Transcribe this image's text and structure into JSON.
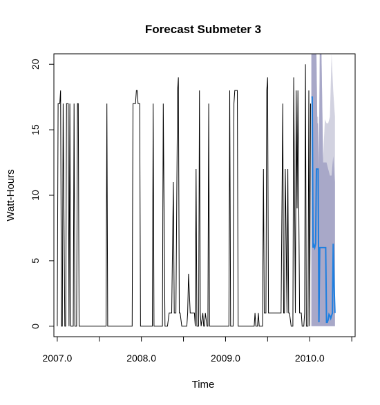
{
  "chart_data": {
    "type": "line",
    "title": "Forecast Submeter 3",
    "xlabel": "Time",
    "ylabel": "Watt-Hours",
    "xlim": [
      2006.96,
      2010.54
    ],
    "ylim": [
      -0.8,
      20.8
    ],
    "x_ticks": [
      2007.0,
      2007.5,
      2008.0,
      2008.5,
      2009.0,
      2009.5,
      2010.0,
      2010.5
    ],
    "x_tick_labels": [
      {
        "value": 2007.0,
        "label": "2007.0"
      },
      {
        "value": 2008.0,
        "label": "2008.0"
      },
      {
        "value": 2009.0,
        "label": "2009.0"
      },
      {
        "value": 2010.0,
        "label": "2010.0"
      }
    ],
    "y_ticks": [
      {
        "value": 0,
        "label": "0"
      },
      {
        "value": 5,
        "label": "5"
      },
      {
        "value": 10,
        "label": "10"
      },
      {
        "value": 15,
        "label": "15"
      },
      {
        "value": 20,
        "label": "20"
      }
    ],
    "grid": false,
    "legend": "none",
    "colors": {
      "observed": "#000000",
      "forecast": "#1e7fe0",
      "band95": "#d2d2e0",
      "band80": "#a8a8c8"
    },
    "observed": [
      [
        2007.0,
        0
      ],
      [
        2007.01,
        17
      ],
      [
        2007.03,
        17
      ],
      [
        2007.04,
        18
      ],
      [
        2007.05,
        0
      ],
      [
        2007.06,
        0
      ],
      [
        2007.07,
        17
      ],
      [
        2007.09,
        0
      ],
      [
        2007.1,
        0
      ],
      [
        2007.11,
        17
      ],
      [
        2007.13,
        17
      ],
      [
        2007.14,
        0
      ],
      [
        2007.15,
        17
      ],
      [
        2007.16,
        0
      ],
      [
        2007.18,
        0
      ],
      [
        2007.19,
        0
      ],
      [
        2007.2,
        17
      ],
      [
        2007.21,
        0
      ],
      [
        2007.23,
        0
      ],
      [
        2007.24,
        17
      ],
      [
        2007.25,
        17
      ],
      [
        2007.26,
        0
      ],
      [
        2007.28,
        0
      ],
      [
        2007.29,
        0
      ],
      [
        2007.3,
        0
      ],
      [
        2007.31,
        0
      ],
      [
        2007.33,
        0
      ],
      [
        2007.34,
        0
      ],
      [
        2007.35,
        0
      ],
      [
        2007.36,
        0
      ],
      [
        2007.38,
        0
      ],
      [
        2007.39,
        0
      ],
      [
        2007.4,
        0
      ],
      [
        2007.41,
        0
      ],
      [
        2007.43,
        0
      ],
      [
        2007.44,
        0
      ],
      [
        2007.45,
        0
      ],
      [
        2007.46,
        0
      ],
      [
        2007.48,
        0
      ],
      [
        2007.49,
        0
      ],
      [
        2007.5,
        0
      ],
      [
        2007.51,
        0
      ],
      [
        2007.53,
        0
      ],
      [
        2007.54,
        0
      ],
      [
        2007.55,
        0
      ],
      [
        2007.56,
        0
      ],
      [
        2007.58,
        0
      ],
      [
        2007.59,
        17
      ],
      [
        2007.6,
        0
      ],
      [
        2007.61,
        0
      ],
      [
        2007.63,
        0
      ],
      [
        2007.64,
        0
      ],
      [
        2007.65,
        0
      ],
      [
        2007.66,
        0
      ],
      [
        2007.68,
        0
      ],
      [
        2007.69,
        0
      ],
      [
        2007.7,
        0
      ],
      [
        2007.71,
        0
      ],
      [
        2007.73,
        0
      ],
      [
        2007.74,
        0
      ],
      [
        2007.75,
        0
      ],
      [
        2007.76,
        0
      ],
      [
        2007.78,
        0
      ],
      [
        2007.79,
        0
      ],
      [
        2007.8,
        0
      ],
      [
        2007.81,
        0
      ],
      [
        2007.83,
        0
      ],
      [
        2007.84,
        0
      ],
      [
        2007.85,
        0
      ],
      [
        2007.86,
        0
      ],
      [
        2007.88,
        0
      ],
      [
        2007.89,
        0
      ],
      [
        2007.9,
        17
      ],
      [
        2007.91,
        17
      ],
      [
        2007.93,
        17
      ],
      [
        2007.94,
        18
      ],
      [
        2007.95,
        18
      ],
      [
        2007.96,
        17
      ],
      [
        2007.98,
        17
      ],
      [
        2007.99,
        0
      ],
      [
        2008.0,
        0
      ],
      [
        2008.01,
        0
      ],
      [
        2008.03,
        0
      ],
      [
        2008.04,
        0
      ],
      [
        2008.05,
        0
      ],
      [
        2008.06,
        0
      ],
      [
        2008.08,
        0
      ],
      [
        2008.09,
        0
      ],
      [
        2008.1,
        0
      ],
      [
        2008.11,
        0
      ],
      [
        2008.13,
        0
      ],
      [
        2008.14,
        17
      ],
      [
        2008.15,
        0
      ],
      [
        2008.16,
        0
      ],
      [
        2008.18,
        0
      ],
      [
        2008.19,
        0
      ],
      [
        2008.2,
        0
      ],
      [
        2008.21,
        0
      ],
      [
        2008.23,
        0
      ],
      [
        2008.24,
        0
      ],
      [
        2008.25,
        0
      ],
      [
        2008.26,
        17
      ],
      [
        2008.28,
        0
      ],
      [
        2008.29,
        0
      ],
      [
        2008.3,
        0
      ],
      [
        2008.31,
        0
      ],
      [
        2008.33,
        1
      ],
      [
        2008.34,
        1
      ],
      [
        2008.35,
        1
      ],
      [
        2008.36,
        1
      ],
      [
        2008.38,
        11
      ],
      [
        2008.39,
        1
      ],
      [
        2008.4,
        1
      ],
      [
        2008.41,
        1
      ],
      [
        2008.43,
        18
      ],
      [
        2008.44,
        19
      ],
      [
        2008.45,
        1
      ],
      [
        2008.46,
        1
      ],
      [
        2008.48,
        0
      ],
      [
        2008.49,
        0
      ],
      [
        2008.5,
        0
      ],
      [
        2008.51,
        0
      ],
      [
        2008.53,
        0
      ],
      [
        2008.54,
        0
      ],
      [
        2008.55,
        1
      ],
      [
        2008.56,
        4
      ],
      [
        2008.58,
        1
      ],
      [
        2008.59,
        1
      ],
      [
        2008.6,
        1
      ],
      [
        2008.61,
        1
      ],
      [
        2008.63,
        1
      ],
      [
        2008.64,
        0
      ],
      [
        2008.65,
        12
      ],
      [
        2008.66,
        0
      ],
      [
        2008.68,
        0
      ],
      [
        2008.69,
        18
      ],
      [
        2008.7,
        1
      ],
      [
        2008.71,
        0
      ],
      [
        2008.73,
        1
      ],
      [
        2008.74,
        0
      ],
      [
        2008.75,
        0
      ],
      [
        2008.76,
        1
      ],
      [
        2008.78,
        0
      ],
      [
        2008.79,
        0
      ],
      [
        2008.8,
        17
      ],
      [
        2008.81,
        0
      ],
      [
        2008.83,
        0
      ],
      [
        2008.84,
        0
      ],
      [
        2008.85,
        0
      ],
      [
        2008.86,
        0
      ],
      [
        2008.88,
        0
      ],
      [
        2008.89,
        0
      ],
      [
        2008.9,
        0
      ],
      [
        2008.91,
        0
      ],
      [
        2008.93,
        0
      ],
      [
        2008.94,
        0
      ],
      [
        2008.95,
        0
      ],
      [
        2008.96,
        0
      ],
      [
        2008.98,
        0
      ],
      [
        2008.99,
        0
      ],
      [
        2009.0,
        0
      ],
      [
        2009.01,
        0
      ],
      [
        2009.03,
        0
      ],
      [
        2009.04,
        0
      ],
      [
        2009.05,
        18
      ],
      [
        2009.06,
        0
      ],
      [
        2009.08,
        0
      ],
      [
        2009.09,
        0
      ],
      [
        2009.1,
        17
      ],
      [
        2009.11,
        18
      ],
      [
        2009.13,
        18
      ],
      [
        2009.14,
        18
      ],
      [
        2009.15,
        0
      ],
      [
        2009.16,
        0
      ],
      [
        2009.18,
        0
      ],
      [
        2009.19,
        0
      ],
      [
        2009.2,
        0
      ],
      [
        2009.21,
        0
      ],
      [
        2009.23,
        0
      ],
      [
        2009.24,
        0
      ],
      [
        2009.25,
        0
      ],
      [
        2009.26,
        0
      ],
      [
        2009.28,
        0
      ],
      [
        2009.29,
        0
      ],
      [
        2009.3,
        0
      ],
      [
        2009.31,
        0
      ],
      [
        2009.33,
        0
      ],
      [
        2009.34,
        0
      ],
      [
        2009.35,
        1
      ],
      [
        2009.36,
        0
      ],
      [
        2009.38,
        0
      ],
      [
        2009.39,
        1
      ],
      [
        2009.4,
        0
      ],
      [
        2009.41,
        0
      ],
      [
        2009.43,
        0
      ],
      [
        2009.44,
        0
      ],
      [
        2009.45,
        12
      ],
      [
        2009.46,
        1
      ],
      [
        2009.48,
        1
      ],
      [
        2009.49,
        18
      ],
      [
        2009.5,
        19
      ],
      [
        2009.51,
        1
      ],
      [
        2009.53,
        1
      ],
      [
        2009.54,
        1
      ],
      [
        2009.55,
        1
      ],
      [
        2009.56,
        1
      ],
      [
        2009.58,
        1
      ],
      [
        2009.59,
        1
      ],
      [
        2009.6,
        1
      ],
      [
        2009.61,
        1
      ],
      [
        2009.63,
        1
      ],
      [
        2009.64,
        1
      ],
      [
        2009.65,
        1
      ],
      [
        2009.66,
        1
      ],
      [
        2009.68,
        17
      ],
      [
        2009.69,
        1
      ],
      [
        2009.7,
        1
      ],
      [
        2009.71,
        12
      ],
      [
        2009.73,
        1
      ],
      [
        2009.74,
        12
      ],
      [
        2009.75,
        1
      ],
      [
        2009.76,
        1
      ],
      [
        2009.78,
        0
      ],
      [
        2009.79,
        0
      ],
      [
        2009.8,
        0
      ],
      [
        2009.81,
        19
      ],
      [
        2009.83,
        1
      ],
      [
        2009.84,
        18
      ],
      [
        2009.85,
        9
      ],
      [
        2009.86,
        18
      ],
      [
        2009.88,
        1
      ],
      [
        2009.89,
        1
      ],
      [
        2009.9,
        1
      ],
      [
        2009.91,
        0
      ],
      [
        2009.93,
        0
      ],
      [
        2009.94,
        1
      ],
      [
        2009.95,
        20
      ],
      [
        2009.96,
        0
      ],
      [
        2009.98,
        0
      ],
      [
        2009.99,
        18
      ],
      [
        2010.0,
        0
      ],
      [
        2010.01,
        17
      ]
    ],
    "forecast": [
      [
        2010.02,
        17.5
      ],
      [
        2010.03,
        17.5
      ],
      [
        2010.04,
        6
      ],
      [
        2010.05,
        6.2
      ],
      [
        2010.06,
        6
      ],
      [
        2010.07,
        6.3
      ],
      [
        2010.08,
        12
      ],
      [
        2010.09,
        12
      ],
      [
        2010.1,
        12
      ],
      [
        2010.11,
        0.3
      ],
      [
        2010.12,
        6
      ],
      [
        2010.13,
        6
      ],
      [
        2010.14,
        6
      ],
      [
        2010.15,
        6
      ],
      [
        2010.16,
        6
      ],
      [
        2010.17,
        6
      ],
      [
        2010.18,
        6
      ],
      [
        2010.19,
        6
      ],
      [
        2010.2,
        0.3
      ],
      [
        2010.21,
        0.3
      ],
      [
        2010.22,
        0.5
      ],
      [
        2010.23,
        0.9
      ],
      [
        2010.24,
        0.8
      ],
      [
        2010.25,
        0.6
      ],
      [
        2010.26,
        0.8
      ],
      [
        2010.27,
        1.0
      ],
      [
        2010.28,
        6.3
      ],
      [
        2010.29,
        3.0
      ],
      [
        2010.3,
        1.0
      ]
    ],
    "band80": [
      [
        2010.02,
        0,
        20.8
      ],
      [
        2010.04,
        0,
        20.8
      ],
      [
        2010.06,
        0,
        20.8
      ],
      [
        2010.08,
        0,
        20.8
      ],
      [
        2010.09,
        0,
        15.5
      ],
      [
        2010.1,
        0,
        15.5
      ],
      [
        2010.11,
        0,
        12.0
      ],
      [
        2010.12,
        0,
        20.8
      ],
      [
        2010.14,
        0,
        20.8
      ],
      [
        2010.16,
        0,
        12.5
      ],
      [
        2010.18,
        0,
        12.5
      ],
      [
        2010.2,
        0,
        12.5
      ],
      [
        2010.22,
        0,
        12.0
      ],
      [
        2010.24,
        0,
        11.5
      ],
      [
        2010.26,
        0,
        11.5
      ],
      [
        2010.28,
        0,
        13.0
      ],
      [
        2010.3,
        0,
        11.0
      ]
    ],
    "band95": [
      [
        2010.02,
        0,
        20.8
      ],
      [
        2010.04,
        0,
        20.8
      ],
      [
        2010.06,
        0,
        20.8
      ],
      [
        2010.08,
        0,
        20.8
      ],
      [
        2010.09,
        0,
        16.0
      ],
      [
        2010.1,
        0,
        16.0
      ],
      [
        2010.11,
        0,
        12.5
      ],
      [
        2010.12,
        0,
        20.8
      ],
      [
        2010.14,
        0,
        20.8
      ],
      [
        2010.16,
        0,
        12.8
      ],
      [
        2010.18,
        0,
        15.8
      ],
      [
        2010.2,
        0,
        15.5
      ],
      [
        2010.22,
        0,
        15.5
      ],
      [
        2010.24,
        0,
        16.0
      ],
      [
        2010.26,
        0,
        20.8
      ],
      [
        2010.28,
        0,
        18.0
      ],
      [
        2010.3,
        0,
        16.0
      ]
    ]
  }
}
